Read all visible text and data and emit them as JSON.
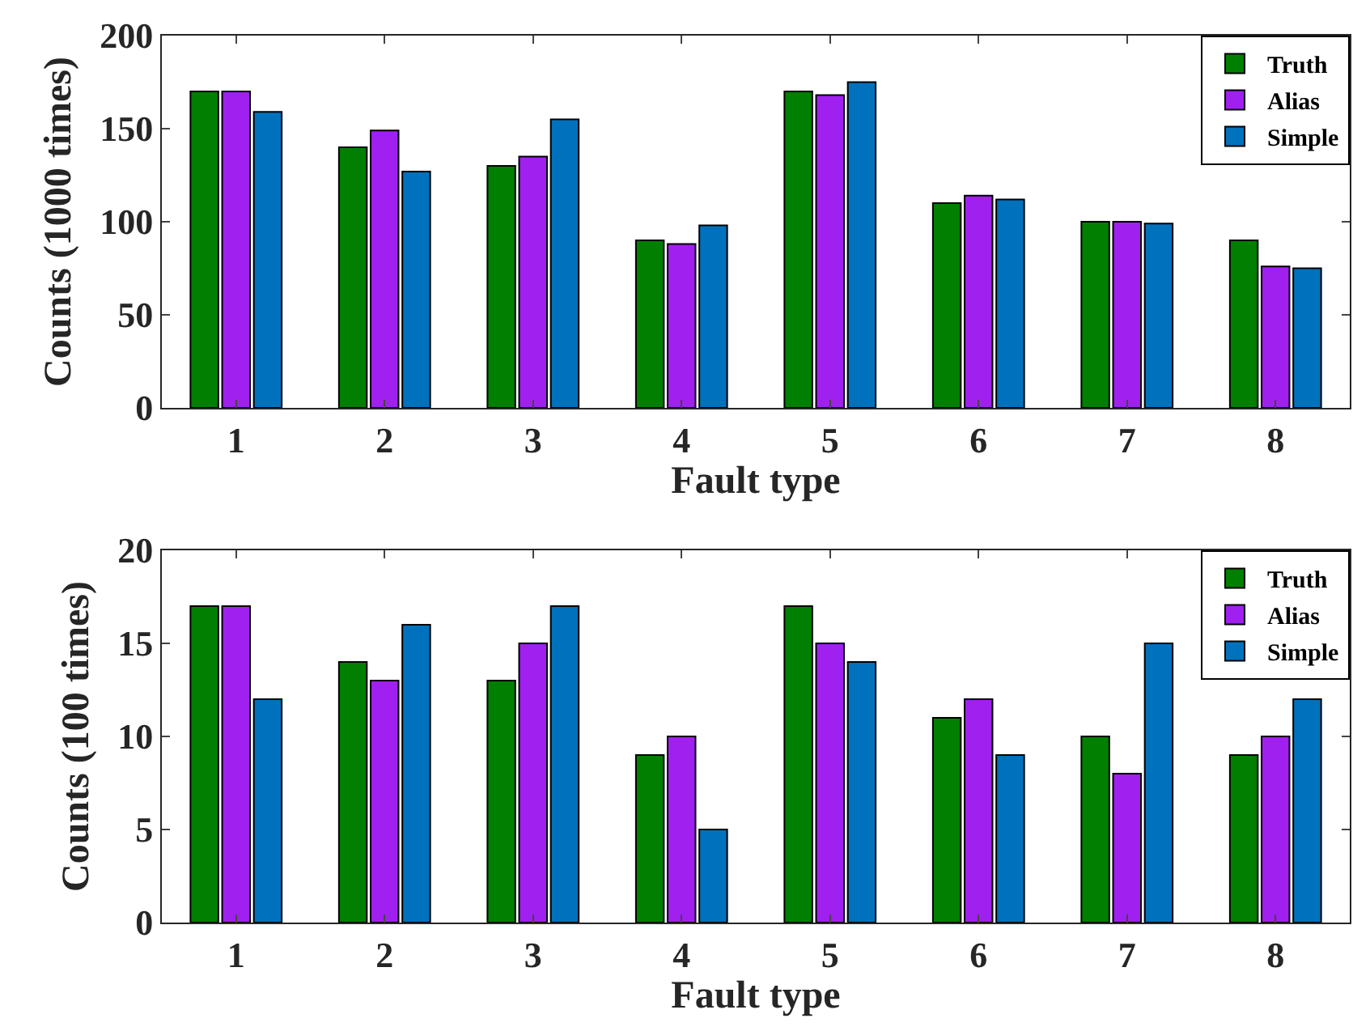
{
  "chart_data": [
    {
      "type": "bar",
      "xlabel": "Fault type",
      "ylabel": "Counts (1000 times)",
      "categories": [
        "1",
        "2",
        "3",
        "4",
        "5",
        "6",
        "7",
        "8"
      ],
      "ylim": [
        0,
        200
      ],
      "yticks": [
        0,
        50,
        100,
        150,
        200
      ],
      "grid": false,
      "legend": "top right",
      "series": [
        {
          "name": "Truth",
          "color": "#007f00",
          "values": [
            170,
            140,
            130,
            90,
            170,
            110,
            100,
            90
          ]
        },
        {
          "name": "Alias",
          "color": "#a020f0",
          "values": [
            170,
            149,
            135,
            88,
            168,
            114,
            100,
            76
          ]
        },
        {
          "name": "Simple",
          "color": "#0072bd",
          "values": [
            159,
            127,
            155,
            98,
            175,
            112,
            99,
            75
          ]
        }
      ]
    },
    {
      "type": "bar",
      "xlabel": "Fault type",
      "ylabel": "Counts (100 times)",
      "categories": [
        "1",
        "2",
        "3",
        "4",
        "5",
        "6",
        "7",
        "8"
      ],
      "ylim": [
        0,
        20
      ],
      "yticks": [
        0,
        5,
        10,
        15,
        20
      ],
      "grid": false,
      "legend": "top right",
      "series": [
        {
          "name": "Truth",
          "color": "#007f00",
          "values": [
            17,
            14,
            13,
            9,
            17,
            11,
            10,
            9
          ]
        },
        {
          "name": "Alias",
          "color": "#a020f0",
          "values": [
            17,
            13,
            15,
            10,
            15,
            12,
            8,
            10
          ]
        },
        {
          "name": "Simple",
          "color": "#0072bd",
          "values": [
            12,
            16,
            17,
            5,
            14,
            9,
            15,
            12
          ]
        }
      ]
    }
  ]
}
